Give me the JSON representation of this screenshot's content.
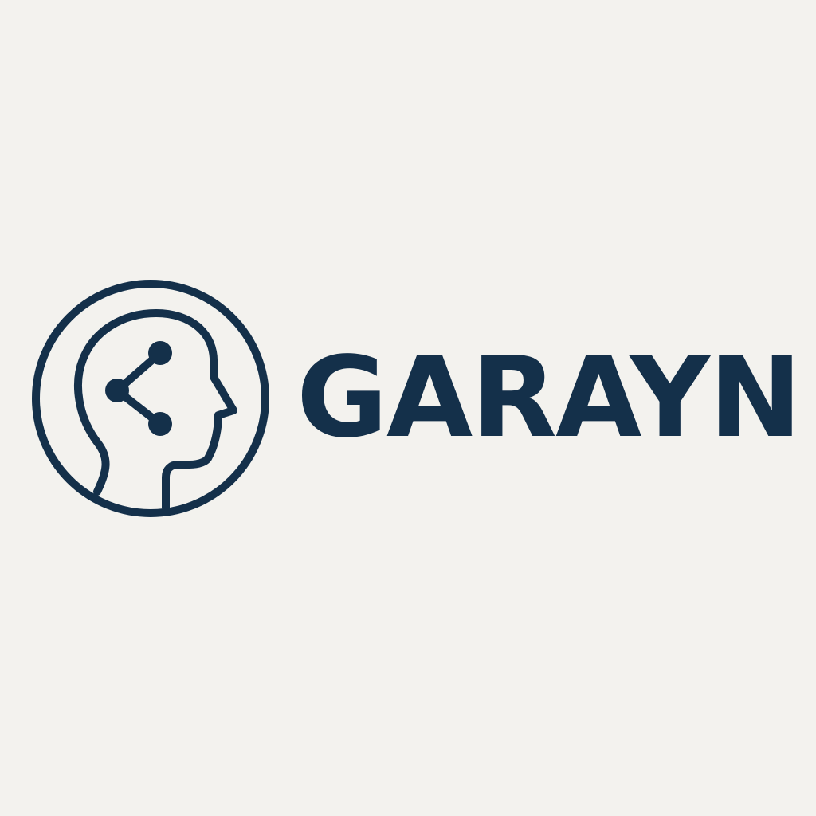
{
  "brand": {
    "name": "GARAYN",
    "mark_icon": "head-network-share-icon"
  },
  "colors": {
    "background": "#f3f2ee",
    "ink": "#14304a"
  }
}
